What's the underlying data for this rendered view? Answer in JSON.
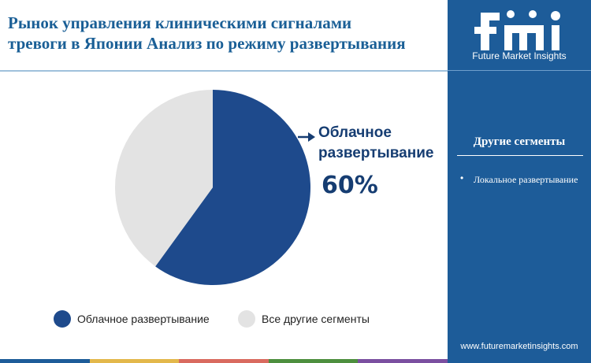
{
  "title_lines": [
    "Рынок управления клиническими сигналами",
    "тревоги в Японии Анализ по режиму развертывания"
  ],
  "colors": {
    "primary": "#1e4a8c",
    "secondary": "#e3e3e3",
    "panel": "#1d5c99",
    "accent": "#163d72",
    "bar": [
      "#1d5c99",
      "#e3b84b",
      "#d96a5f",
      "#4d8f3e",
      "#7b4fa0"
    ]
  },
  "chart_data": {
    "type": "pie",
    "series": [
      {
        "name": "Облачное развертывание",
        "value": 60,
        "color": "#1e4a8c"
      },
      {
        "name": "Все другие сегменты",
        "value": 40,
        "color": "#e3e3e3"
      }
    ],
    "callout": {
      "label_lines": [
        "Облачное",
        "развертывание"
      ],
      "value": "60%"
    },
    "legend": [
      "Облачное развертывание",
      "Все другие сегменты"
    ],
    "legend_position": "bottom"
  },
  "sidebar": {
    "logo_text": "Future Market Insights",
    "other_segments_title": "Другие сегменты",
    "items": [
      "Локальное развертывание"
    ],
    "website": "www.futuremarketinsights.com"
  }
}
